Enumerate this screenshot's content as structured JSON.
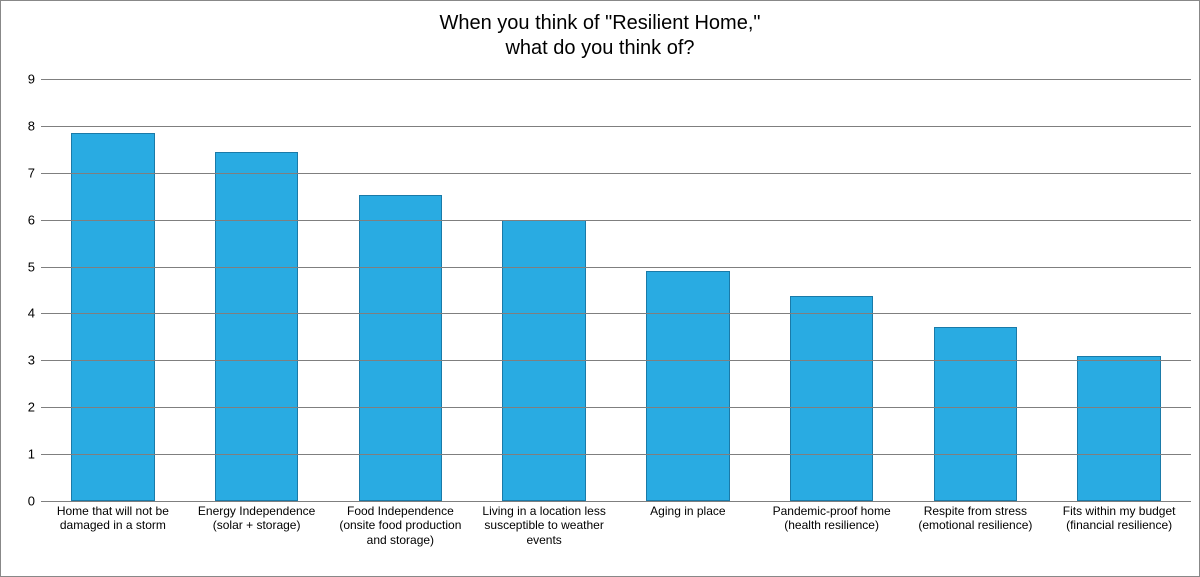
{
  "chart": {
    "type": "bar",
    "title_line1": "When you think of \"Resilient Home,\"",
    "title_line2": "what do you think of?",
    "title_fontsize": 20,
    "title_color": "#000000",
    "background_color": "#ffffff",
    "outer_border_color": "#888888",
    "grid_color": "#7f7f7f",
    "ylim_min": 0,
    "ylim_max": 9,
    "ytick_step": 1,
    "ytick_labels": [
      "0",
      "1",
      "2",
      "3",
      "4",
      "5",
      "6",
      "7",
      "8",
      "9"
    ],
    "ytick_fontsize": 13,
    "bar_fill_color": "#29abe2",
    "bar_border_color": "#1a7aa8",
    "bar_width_ratio": 0.58,
    "xlabel_fontsize": 12,
    "categories": [
      "Home that will not be damaged in a storm",
      "Energy Independence (solar + storage)",
      "Food Independence (onsite food production and storage)",
      "Living in a location less susceptible to weather events",
      "Aging in place",
      "Pandemic-proof home (health resilience)",
      "Respite from stress (emotional resilience)",
      "Fits within my budget (financial resilience)"
    ],
    "values": [
      7.85,
      7.45,
      6.52,
      6.0,
      4.9,
      4.38,
      3.72,
      3.1
    ]
  }
}
